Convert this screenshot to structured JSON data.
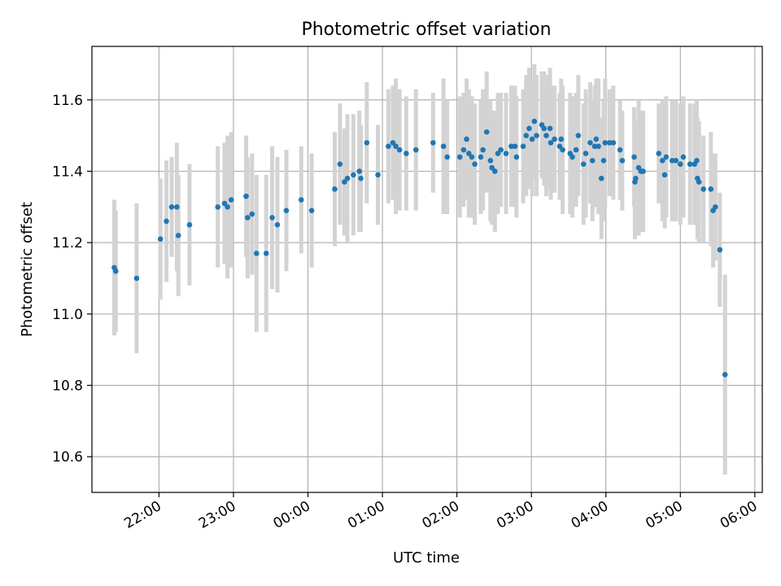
{
  "chart_data": {
    "type": "scatter",
    "title": "Photometric offset variation",
    "xlabel": "UTC time",
    "ylabel": "Photometric offset",
    "x_unit": "hours since 21:00 UTC",
    "xlim": [
      0.1,
      9.1
    ],
    "ylim": [
      10.5,
      11.75
    ],
    "grid": true,
    "point_color": "#1f77b4",
    "errorbar_color": "#d3d3d3",
    "x_ticks": [
      {
        "value": 1,
        "label": "22:00"
      },
      {
        "value": 2,
        "label": "23:00"
      },
      {
        "value": 3,
        "label": "00:00"
      },
      {
        "value": 4,
        "label": "01:00"
      },
      {
        "value": 5,
        "label": "02:00"
      },
      {
        "value": 6,
        "label": "03:00"
      },
      {
        "value": 7,
        "label": "04:00"
      },
      {
        "value": 8,
        "label": "05:00"
      },
      {
        "value": 9,
        "label": "06:00"
      }
    ],
    "y_ticks": [
      {
        "value": 10.6,
        "label": "10.6"
      },
      {
        "value": 10.8,
        "label": "10.8"
      },
      {
        "value": 11.0,
        "label": "11.0"
      },
      {
        "value": 11.2,
        "label": "11.2"
      },
      {
        "value": 11.4,
        "label": "11.4"
      },
      {
        "value": 11.6,
        "label": "11.6"
      }
    ],
    "points": [
      {
        "x": 0.4,
        "y": 11.13,
        "err": 0.19
      },
      {
        "x": 0.42,
        "y": 11.12,
        "err": 0.17
      },
      {
        "x": 0.7,
        "y": 11.1,
        "err": 0.21
      },
      {
        "x": 1.02,
        "y": 11.21,
        "err": 0.17
      },
      {
        "x": 1.1,
        "y": 11.26,
        "err": 0.17
      },
      {
        "x": 1.17,
        "y": 11.3,
        "err": 0.14
      },
      {
        "x": 1.24,
        "y": 11.3,
        "err": 0.18
      },
      {
        "x": 1.26,
        "y": 11.22,
        "err": 0.17
      },
      {
        "x": 1.41,
        "y": 11.25,
        "err": 0.17
      },
      {
        "x": 1.79,
        "y": 11.3,
        "err": 0.17
      },
      {
        "x": 1.88,
        "y": 11.31,
        "err": 0.17
      },
      {
        "x": 1.92,
        "y": 11.3,
        "err": 0.2
      },
      {
        "x": 1.97,
        "y": 11.32,
        "err": 0.19
      },
      {
        "x": 2.17,
        "y": 11.33,
        "err": 0.17
      },
      {
        "x": 2.19,
        "y": 11.27,
        "err": 0.17
      },
      {
        "x": 2.25,
        "y": 11.28,
        "err": 0.17
      },
      {
        "x": 2.31,
        "y": 11.17,
        "err": 0.22
      },
      {
        "x": 2.44,
        "y": 11.17,
        "err": 0.22
      },
      {
        "x": 2.52,
        "y": 11.27,
        "err": 0.2
      },
      {
        "x": 2.59,
        "y": 11.25,
        "err": 0.19
      },
      {
        "x": 2.71,
        "y": 11.29,
        "err": 0.17
      },
      {
        "x": 2.91,
        "y": 11.32,
        "err": 0.15
      },
      {
        "x": 3.05,
        "y": 11.29,
        "err": 0.16
      },
      {
        "x": 3.36,
        "y": 11.35,
        "err": 0.16
      },
      {
        "x": 3.43,
        "y": 11.42,
        "err": 0.17
      },
      {
        "x": 3.49,
        "y": 11.37,
        "err": 0.15
      },
      {
        "x": 3.53,
        "y": 11.38,
        "err": 0.18
      },
      {
        "x": 3.61,
        "y": 11.39,
        "err": 0.17
      },
      {
        "x": 3.69,
        "y": 11.4,
        "err": 0.17
      },
      {
        "x": 3.71,
        "y": 11.38,
        "err": 0.15
      },
      {
        "x": 3.79,
        "y": 11.48,
        "err": 0.17
      },
      {
        "x": 3.94,
        "y": 11.39,
        "err": 0.14
      },
      {
        "x": 4.08,
        "y": 11.47,
        "err": 0.16
      },
      {
        "x": 4.14,
        "y": 11.48,
        "err": 0.16
      },
      {
        "x": 4.18,
        "y": 11.47,
        "err": 0.19
      },
      {
        "x": 4.23,
        "y": 11.46,
        "err": 0.17
      },
      {
        "x": 4.32,
        "y": 11.45,
        "err": 0.16
      },
      {
        "x": 4.45,
        "y": 11.46,
        "err": 0.17
      },
      {
        "x": 4.68,
        "y": 11.48,
        "err": 0.14
      },
      {
        "x": 4.82,
        "y": 11.47,
        "err": 0.19
      },
      {
        "x": 4.87,
        "y": 11.44,
        "err": 0.16
      },
      {
        "x": 5.04,
        "y": 11.44,
        "err": 0.17
      },
      {
        "x": 5.09,
        "y": 11.46,
        "err": 0.16
      },
      {
        "x": 5.13,
        "y": 11.49,
        "err": 0.17
      },
      {
        "x": 5.16,
        "y": 11.45,
        "err": 0.18
      },
      {
        "x": 5.2,
        "y": 11.44,
        "err": 0.17
      },
      {
        "x": 5.24,
        "y": 11.42,
        "err": 0.17
      },
      {
        "x": 5.32,
        "y": 11.44,
        "err": 0.16
      },
      {
        "x": 5.35,
        "y": 11.46,
        "err": 0.17
      },
      {
        "x": 5.4,
        "y": 11.51,
        "err": 0.17
      },
      {
        "x": 5.45,
        "y": 11.43,
        "err": 0.17
      },
      {
        "x": 5.47,
        "y": 11.41,
        "err": 0.16
      },
      {
        "x": 5.51,
        "y": 11.4,
        "err": 0.17
      },
      {
        "x": 5.55,
        "y": 11.45,
        "err": 0.17
      },
      {
        "x": 5.59,
        "y": 11.46,
        "err": 0.16
      },
      {
        "x": 5.66,
        "y": 11.45,
        "err": 0.17
      },
      {
        "x": 5.73,
        "y": 11.47,
        "err": 0.17
      },
      {
        "x": 5.78,
        "y": 11.47,
        "err": 0.17
      },
      {
        "x": 5.8,
        "y": 11.44,
        "err": 0.17
      },
      {
        "x": 5.89,
        "y": 11.47,
        "err": 0.16
      },
      {
        "x": 5.93,
        "y": 11.5,
        "err": 0.17
      },
      {
        "x": 5.97,
        "y": 11.52,
        "err": 0.17
      },
      {
        "x": 6.01,
        "y": 11.49,
        "err": 0.16
      },
      {
        "x": 6.04,
        "y": 11.54,
        "err": 0.16
      },
      {
        "x": 6.07,
        "y": 11.5,
        "err": 0.17
      },
      {
        "x": 6.14,
        "y": 11.53,
        "err": 0.15
      },
      {
        "x": 6.17,
        "y": 11.52,
        "err": 0.16
      },
      {
        "x": 6.2,
        "y": 11.5,
        "err": 0.17
      },
      {
        "x": 6.25,
        "y": 11.52,
        "err": 0.17
      },
      {
        "x": 6.26,
        "y": 11.48,
        "err": 0.16
      },
      {
        "x": 6.31,
        "y": 11.49,
        "err": 0.15
      },
      {
        "x": 6.38,
        "y": 11.47,
        "err": 0.15
      },
      {
        "x": 6.4,
        "y": 11.49,
        "err": 0.17
      },
      {
        "x": 6.42,
        "y": 11.46,
        "err": 0.18
      },
      {
        "x": 6.52,
        "y": 11.45,
        "err": 0.17
      },
      {
        "x": 6.55,
        "y": 11.44,
        "err": 0.17
      },
      {
        "x": 6.6,
        "y": 11.46,
        "err": 0.16
      },
      {
        "x": 6.63,
        "y": 11.5,
        "err": 0.17
      },
      {
        "x": 6.7,
        "y": 11.42,
        "err": 0.17
      },
      {
        "x": 6.73,
        "y": 11.45,
        "err": 0.18
      },
      {
        "x": 6.79,
        "y": 11.48,
        "err": 0.17
      },
      {
        "x": 6.82,
        "y": 11.43,
        "err": 0.17
      },
      {
        "x": 6.85,
        "y": 11.47,
        "err": 0.17
      },
      {
        "x": 6.87,
        "y": 11.49,
        "err": 0.17
      },
      {
        "x": 6.9,
        "y": 11.47,
        "err": 0.19
      },
      {
        "x": 6.94,
        "y": 11.38,
        "err": 0.17
      },
      {
        "x": 6.97,
        "y": 11.43,
        "err": 0.17
      },
      {
        "x": 6.99,
        "y": 11.48,
        "err": 0.18
      },
      {
        "x": 7.05,
        "y": 11.48,
        "err": 0.15
      },
      {
        "x": 7.1,
        "y": 11.48,
        "err": 0.16
      },
      {
        "x": 7.19,
        "y": 11.46,
        "err": 0.14
      },
      {
        "x": 7.22,
        "y": 11.43,
        "err": 0.14
      },
      {
        "x": 7.38,
        "y": 11.44,
        "err": 0.14
      },
      {
        "x": 7.39,
        "y": 11.37,
        "err": 0.16
      },
      {
        "x": 7.4,
        "y": 11.38,
        "err": 0.16
      },
      {
        "x": 7.44,
        "y": 11.41,
        "err": 0.19
      },
      {
        "x": 7.47,
        "y": 11.4,
        "err": 0.17
      },
      {
        "x": 7.5,
        "y": 11.4,
        "err": 0.17
      },
      {
        "x": 7.71,
        "y": 11.45,
        "err": 0.14
      },
      {
        "x": 7.76,
        "y": 11.43,
        "err": 0.17
      },
      {
        "x": 7.79,
        "y": 11.39,
        "err": 0.15
      },
      {
        "x": 7.81,
        "y": 11.44,
        "err": 0.17
      },
      {
        "x": 7.89,
        "y": 11.43,
        "err": 0.17
      },
      {
        "x": 7.94,
        "y": 11.43,
        "err": 0.17
      },
      {
        "x": 8.0,
        "y": 11.42,
        "err": 0.17
      },
      {
        "x": 8.04,
        "y": 11.44,
        "err": 0.17
      },
      {
        "x": 8.13,
        "y": 11.42,
        "err": 0.17
      },
      {
        "x": 8.19,
        "y": 11.42,
        "err": 0.17
      },
      {
        "x": 8.22,
        "y": 11.43,
        "err": 0.17
      },
      {
        "x": 8.23,
        "y": 11.38,
        "err": 0.17
      },
      {
        "x": 8.25,
        "y": 11.37,
        "err": 0.17
      },
      {
        "x": 8.31,
        "y": 11.35,
        "err": 0.15
      },
      {
        "x": 8.41,
        "y": 11.35,
        "err": 0.16
      },
      {
        "x": 8.44,
        "y": 11.29,
        "err": 0.16
      },
      {
        "x": 8.47,
        "y": 11.3,
        "err": 0.15
      },
      {
        "x": 8.53,
        "y": 11.18,
        "err": 0.16
      },
      {
        "x": 8.6,
        "y": 10.83,
        "err": 0.28
      }
    ]
  }
}
